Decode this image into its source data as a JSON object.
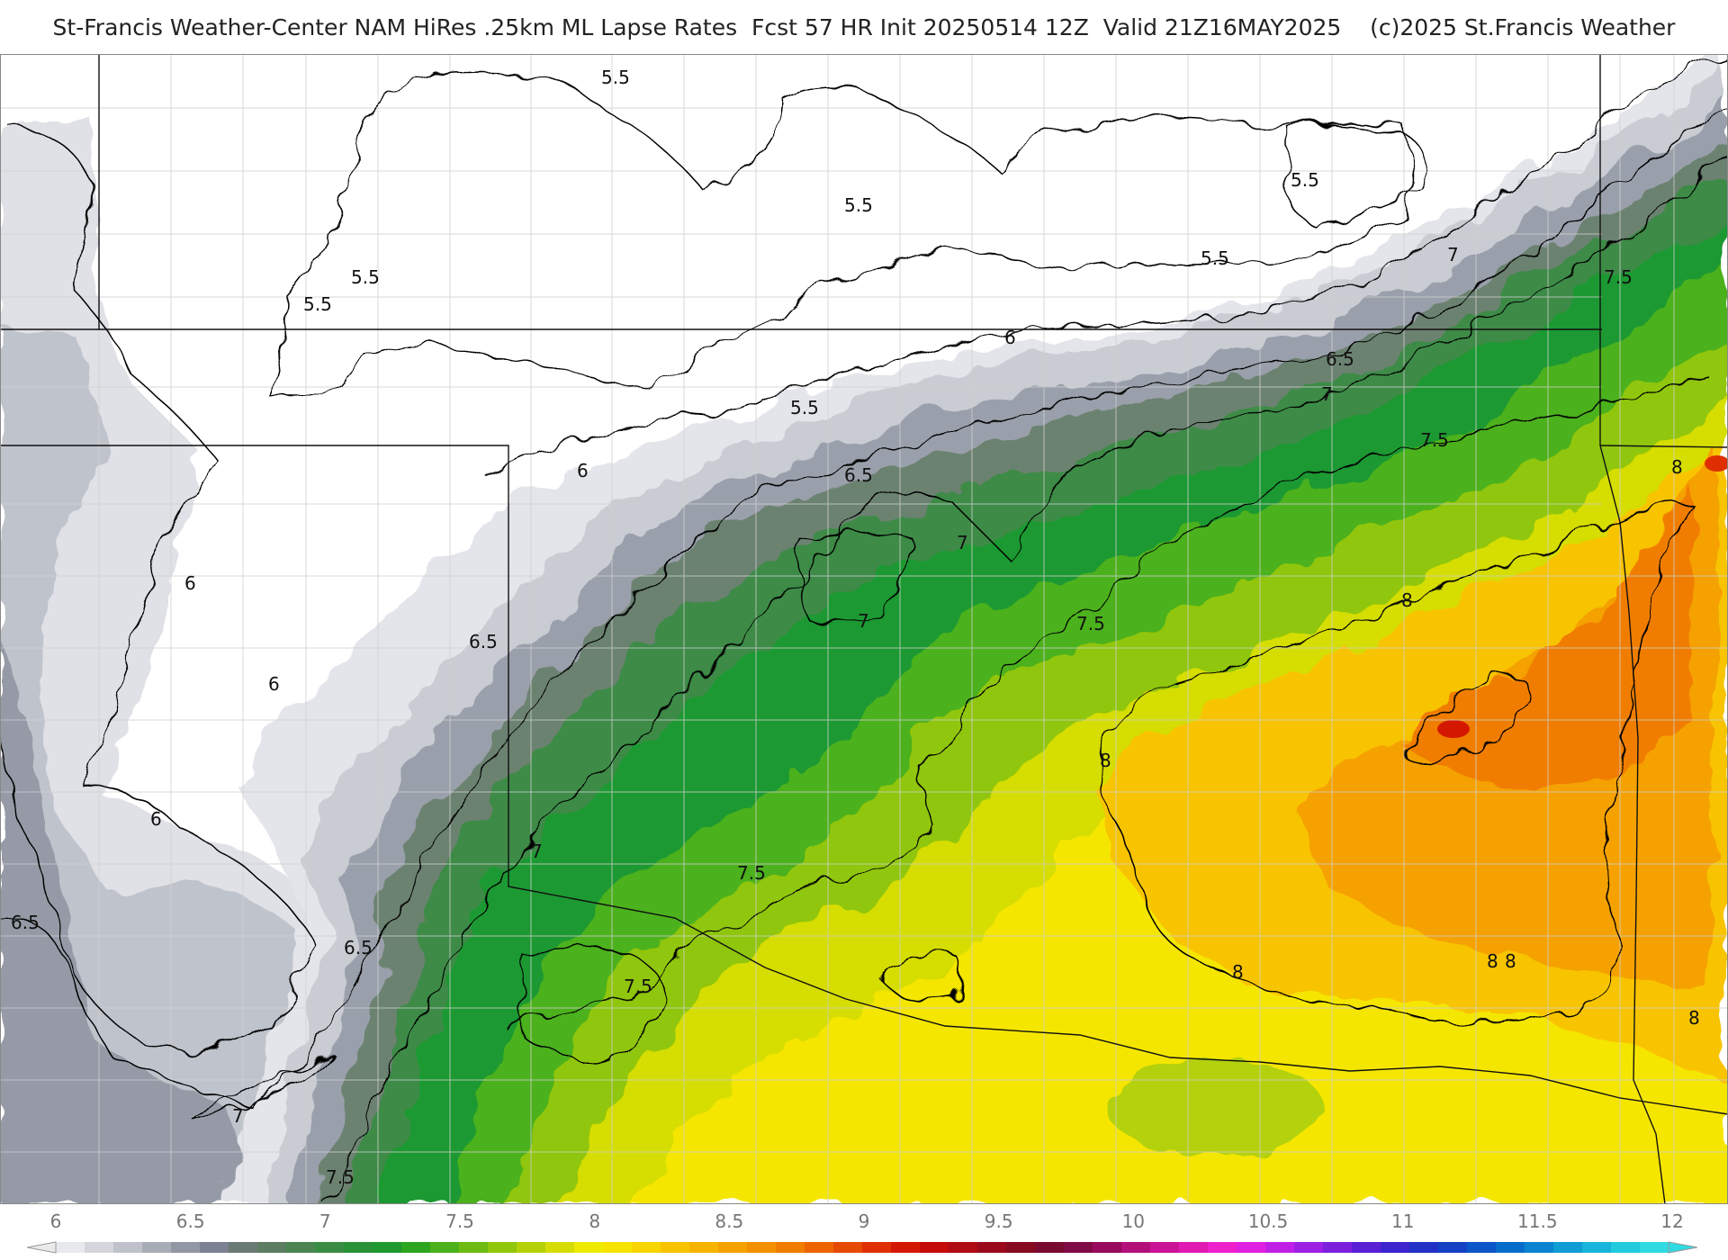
{
  "title": "St-Francis Weather-Center NAM HiRes .25km ML Lapse Rates  Fcst 57 HR Init 20250514 12Z  Valid 21Z16MAY2025    (c)2025 St.Francis Weather",
  "colors": {
    "scale": [
      "#e8e9ec",
      "#d4d6dc",
      "#bfc2ca",
      "#a8acb7",
      "#9297a3",
      "#7c8291",
      "#6b7a74",
      "#5c7d62",
      "#4a8552",
      "#3a8c44",
      "#2a9236",
      "#1f9930",
      "#2ea51f",
      "#4bb11a",
      "#6dbb12",
      "#90c60c",
      "#b4d108",
      "#d6dd05",
      "#eeea03",
      "#f7e300",
      "#f8d400",
      "#f8c400",
      "#f7b300",
      "#f5a100",
      "#f39000",
      "#f07d00",
      "#ec6500",
      "#e64a00",
      "#df2f00",
      "#d41800",
      "#c40a0a",
      "#b00a14",
      "#9a0a1c",
      "#860a22",
      "#7a0a30",
      "#800a46",
      "#990a5c",
      "#b3107a",
      "#cc1496",
      "#e01ab2",
      "#ee20cc",
      "#e020e0",
      "#c020e6",
      "#9e20e4",
      "#7c20de",
      "#5a20d6",
      "#3c24ce",
      "#2230c6",
      "#1440c4",
      "#0a55c8",
      "#066ccc",
      "#0a84d0",
      "#109cd4",
      "#18b4da",
      "#22cade",
      "#30dae2"
    ],
    "state_line": "#000000",
    "county_line": "#cccccc",
    "contour": "#000000"
  },
  "colorbar": {
    "ticks": [
      "6",
      "6.5",
      "7",
      "7.5",
      "8",
      "8.5",
      "9",
      "9.5",
      "10",
      "10.5",
      "11",
      "11.5",
      "12"
    ]
  },
  "contour_labels": [
    {
      "text": "5.5"
    },
    {
      "text": "5.5"
    },
    {
      "text": "5.5"
    },
    {
      "text": "5.5"
    },
    {
      "text": "5.5"
    },
    {
      "text": "5.5"
    },
    {
      "text": "5.5"
    },
    {
      "text": "6"
    },
    {
      "text": "6"
    },
    {
      "text": "6"
    },
    {
      "text": "6"
    },
    {
      "text": "6"
    },
    {
      "text": "6.5"
    },
    {
      "text": "6.5"
    },
    {
      "text": "6.5"
    },
    {
      "text": "6.5"
    },
    {
      "text": "6.5"
    },
    {
      "text": "7"
    },
    {
      "text": "7"
    },
    {
      "text": "7"
    },
    {
      "text": "7"
    },
    {
      "text": "7"
    },
    {
      "text": "7"
    },
    {
      "text": "7.5"
    },
    {
      "text": "7.5"
    },
    {
      "text": "7.5"
    },
    {
      "text": "7.5"
    },
    {
      "text": "7.5"
    },
    {
      "text": "7.5"
    },
    {
      "text": "8"
    },
    {
      "text": "8"
    },
    {
      "text": "8"
    },
    {
      "text": "8"
    },
    {
      "text": "8"
    },
    {
      "text": "8"
    },
    {
      "text": "8"
    }
  ]
}
